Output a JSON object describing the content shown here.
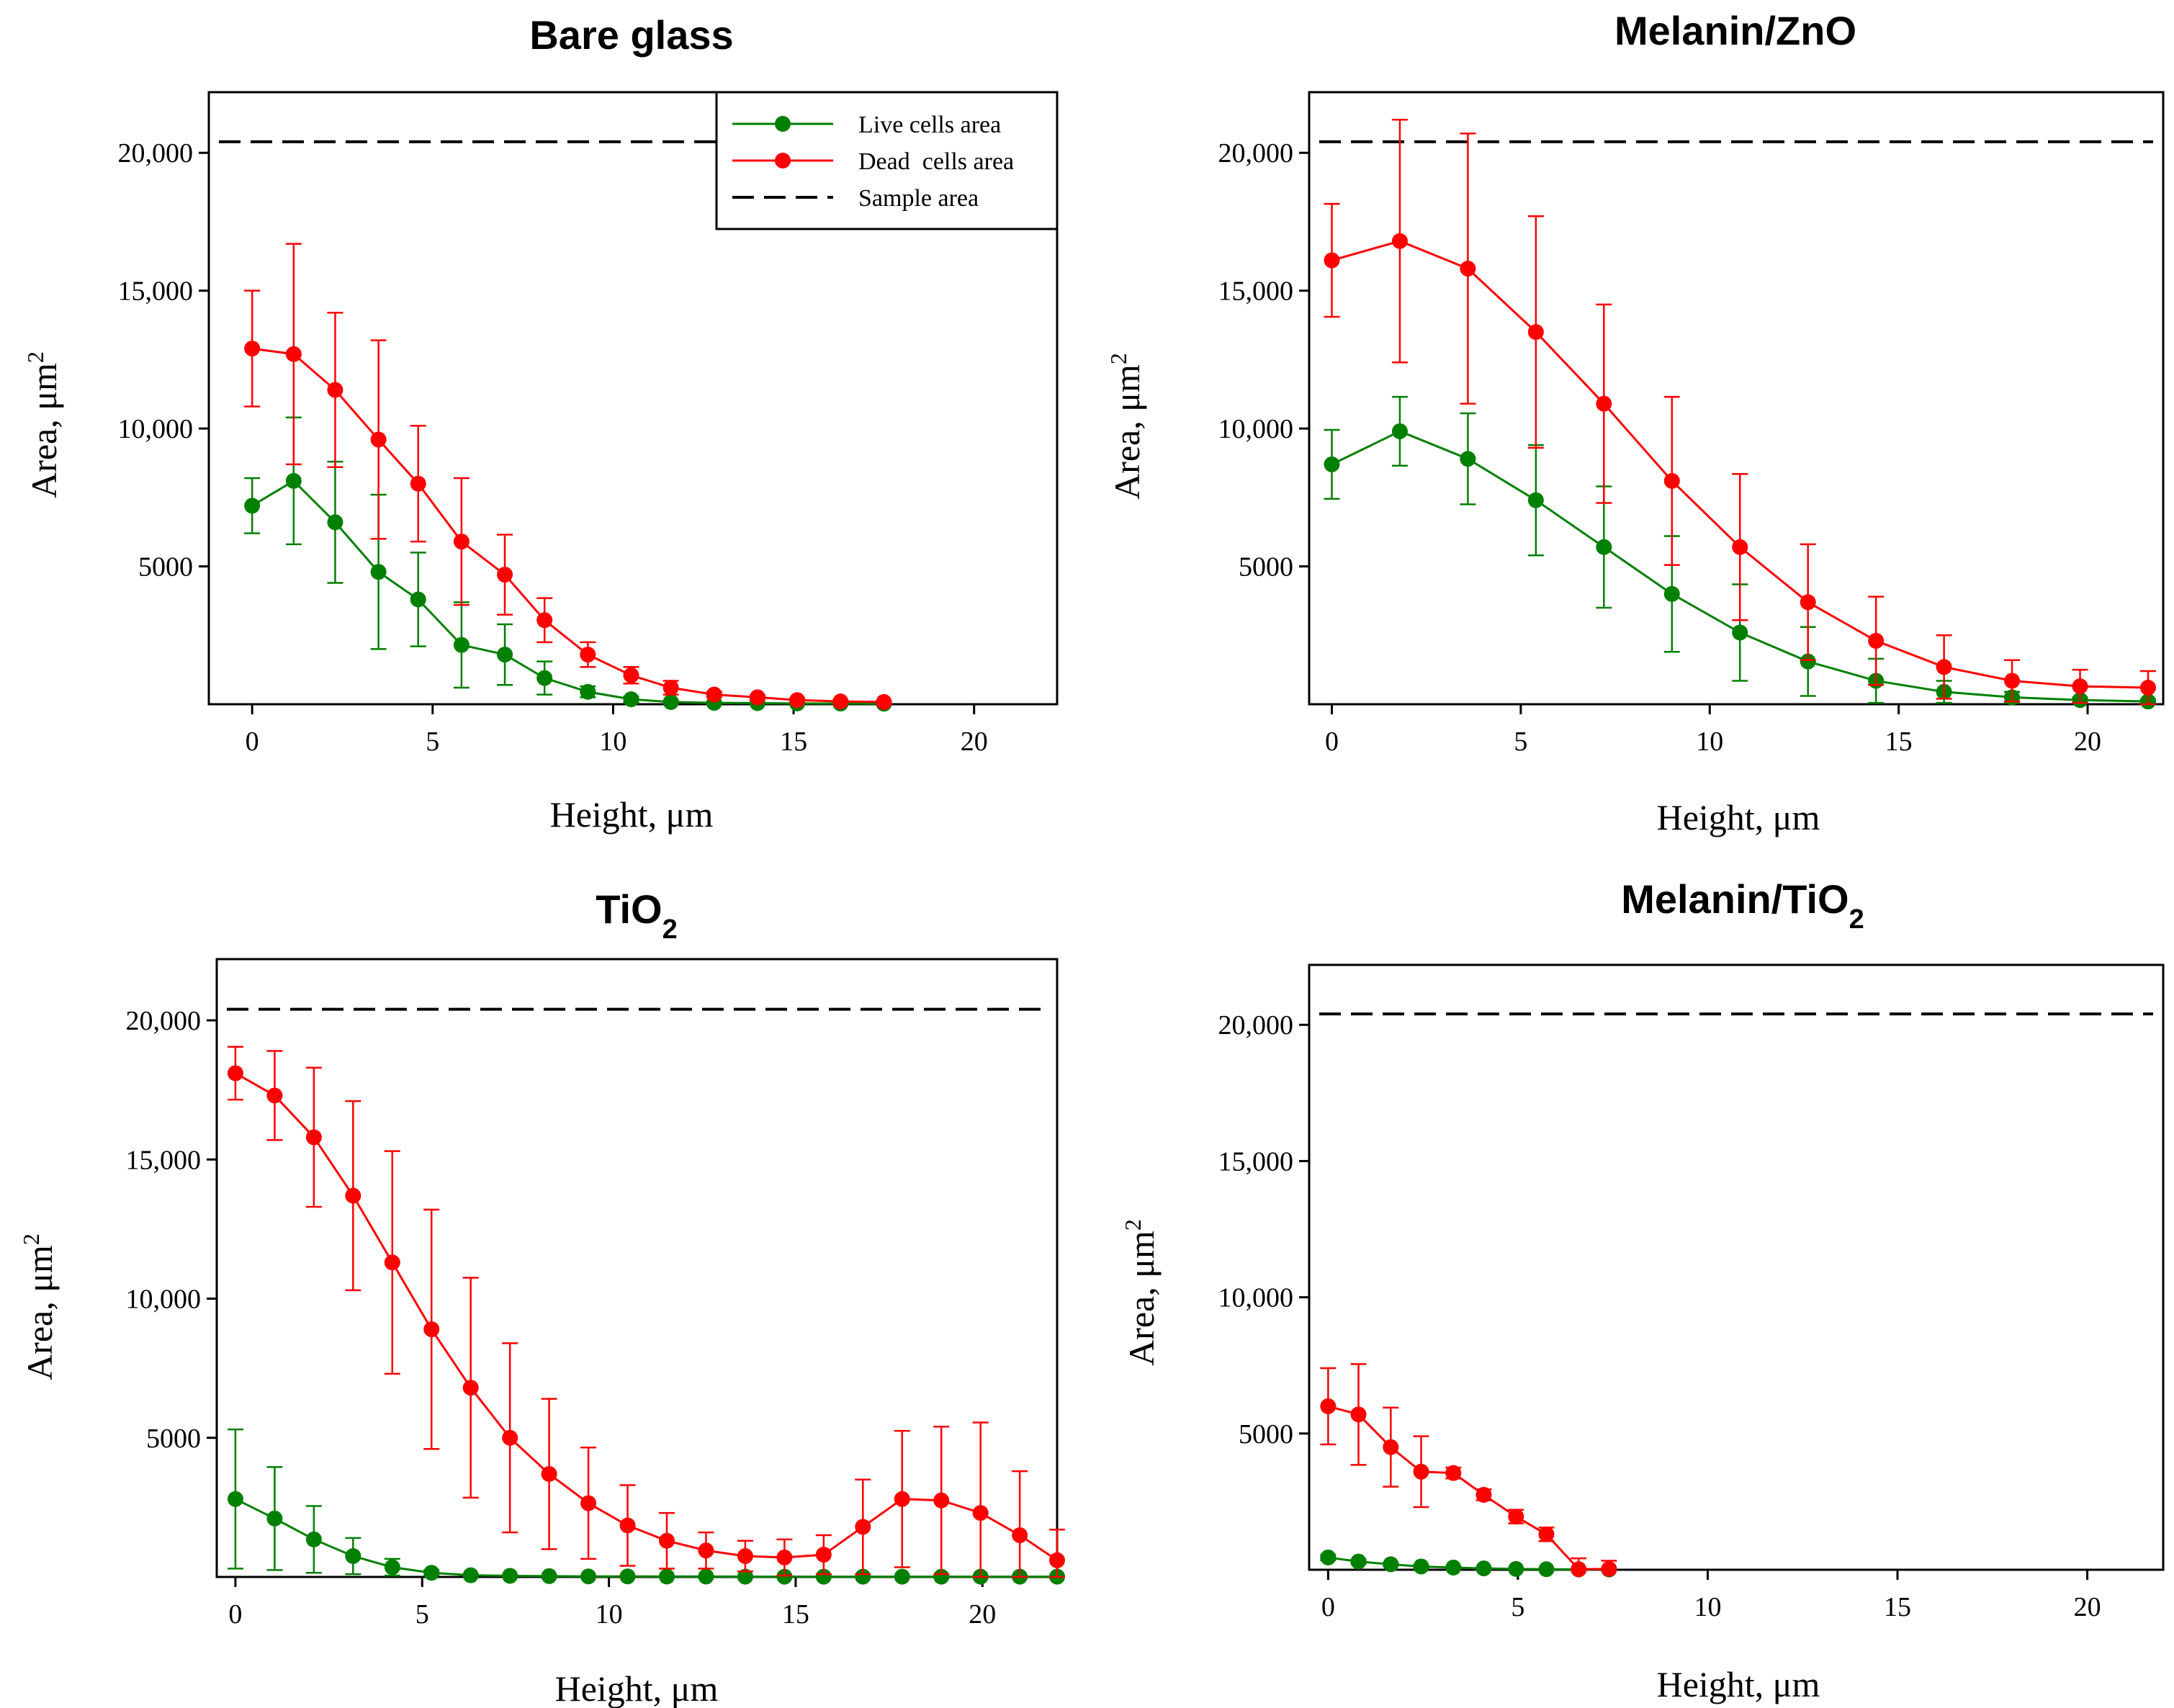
{
  "chart_data": [
    {
      "type": "line",
      "title": "Bare glass",
      "title_sub": "",
      "xlabel": "Height, μm",
      "ylabel": "Area, μm",
      "ylabel_sup": "2",
      "xlim": [
        -1.2,
        22.3
      ],
      "ylim": [
        0,
        22200
      ],
      "xticks": [
        0,
        5,
        10,
        15,
        20
      ],
      "yticks": [
        5000,
        10000,
        15000,
        20000
      ],
      "ytick_labels": [
        "5000",
        "10,000",
        "15,000",
        "20,000"
      ],
      "sample_area": 20400,
      "legend": {
        "position": "top-right",
        "entries": [
          "Live cells area",
          "Dead  cells area",
          "Sample area"
        ]
      },
      "series": [
        {
          "name": "Live cells area",
          "color": "#008000",
          "x": [
            0,
            1.15,
            2.3,
            3.5,
            4.6,
            5.8,
            7.0,
            8.1,
            9.3,
            10.5,
            11.6,
            12.8,
            14.0,
            15.1,
            16.3,
            17.5
          ],
          "y": [
            7200,
            8100,
            6600,
            4800,
            3800,
            2150,
            1800,
            950,
            450,
            180,
            80,
            50,
            40,
            30,
            25,
            20
          ],
          "err": [
            1000,
            2300,
            2200,
            2800,
            1700,
            1550,
            1100,
            600,
            200,
            100,
            50,
            30,
            20,
            15,
            15,
            10
          ]
        },
        {
          "name": "Dead  cells area",
          "color": "#ff0000",
          "x": [
            0,
            1.15,
            2.3,
            3.5,
            4.6,
            5.8,
            7.0,
            8.1,
            9.3,
            10.5,
            11.6,
            12.8,
            14.0,
            15.1,
            16.3,
            17.5
          ],
          "y": [
            12900,
            12700,
            11400,
            9600,
            8000,
            5900,
            4700,
            3050,
            1800,
            1050,
            600,
            350,
            250,
            150,
            100,
            80
          ],
          "err": [
            2100,
            4000,
            2800,
            3600,
            2100,
            2300,
            1450,
            800,
            450,
            300,
            250,
            100,
            80,
            60,
            50,
            40
          ]
        }
      ]
    },
    {
      "type": "line",
      "title": "Melanin/ZnO",
      "title_sub": "",
      "xlabel": "Height, μm",
      "ylabel": "Area, μm",
      "ylabel_sup": "2",
      "xlim": [
        -0.6,
        22.0
      ],
      "ylim": [
        0,
        22200
      ],
      "xticks": [
        0,
        5,
        10,
        15,
        20
      ],
      "yticks": [
        5000,
        10000,
        15000,
        20000
      ],
      "ytick_labels": [
        "5000",
        "10,000",
        "15,000",
        "20,000"
      ],
      "sample_area": 20400,
      "series": [
        {
          "name": "Live cells area",
          "color": "#008000",
          "x": [
            0,
            1.8,
            3.6,
            5.4,
            7.2,
            9.0,
            10.8,
            12.6,
            14.4,
            16.2,
            18.0,
            19.8,
            21.6
          ],
          "y": [
            8700,
            9900,
            8900,
            7400,
            5700,
            4000,
            2600,
            1550,
            850,
            450,
            250,
            150,
            100
          ],
          "err": [
            1250,
            1250,
            1650,
            2000,
            2200,
            2100,
            1750,
            1250,
            800,
            400,
            200,
            100,
            80
          ]
        },
        {
          "name": "Dead  cells area",
          "color": "#ff0000",
          "x": [
            0,
            1.8,
            3.6,
            5.4,
            7.2,
            9.0,
            10.8,
            12.6,
            14.4,
            16.2,
            18.0,
            19.8,
            21.6
          ],
          "y": [
            16100,
            16800,
            15800,
            13500,
            10900,
            8100,
            5700,
            3700,
            2300,
            1350,
            850,
            650,
            600
          ],
          "err": [
            2050,
            4400,
            4900,
            4200,
            3600,
            3050,
            2650,
            2100,
            1600,
            1150,
            750,
            600,
            600
          ]
        }
      ]
    },
    {
      "type": "line",
      "title": "TiO",
      "title_sub": "2",
      "xlabel": "Height, μm",
      "ylabel": "Area, μm",
      "ylabel_sup": "2",
      "xlim": [
        -0.5,
        22.0
      ],
      "ylim": [
        0,
        22200
      ],
      "xticks": [
        0,
        5,
        10,
        15,
        20
      ],
      "yticks": [
        5000,
        10000,
        15000,
        20000
      ],
      "ytick_labels": [
        "5000",
        "10,000",
        "15,000",
        "20,000"
      ],
      "sample_area": 20400,
      "series": [
        {
          "name": "Live cells area",
          "color": "#008000",
          "x": [
            0,
            1.05,
            2.1,
            3.15,
            4.2,
            5.25,
            6.3,
            7.35,
            8.4,
            9.45,
            10.5,
            11.55,
            12.6,
            13.65,
            14.7,
            15.75,
            16.8,
            17.85,
            18.9,
            19.95,
            21.0,
            22.0
          ],
          "y": [
            2800,
            2100,
            1350,
            750,
            350,
            150,
            60,
            40,
            30,
            20,
            20,
            15,
            15,
            10,
            10,
            10,
            10,
            10,
            10,
            10,
            10,
            10
          ],
          "err": [
            2500,
            1850,
            1200,
            650,
            300,
            100,
            40,
            20,
            10,
            10,
            10,
            10,
            10,
            5,
            5,
            5,
            5,
            5,
            5,
            5,
            5,
            5
          ]
        },
        {
          "name": "Dead  cells area",
          "color": "#ff0000",
          "x": [
            0,
            1.05,
            2.1,
            3.15,
            4.2,
            5.25,
            6.3,
            7.35,
            8.4,
            9.45,
            10.5,
            11.55,
            12.6,
            13.65,
            14.7,
            15.75,
            16.8,
            17.85,
            18.9,
            19.95,
            21.0,
            22.0
          ],
          "y": [
            18100,
            17300,
            15800,
            13700,
            11300,
            8900,
            6800,
            5000,
            3700,
            2650,
            1850,
            1300,
            950,
            750,
            700,
            800,
            1800,
            2800,
            2750,
            2300,
            1500,
            600
          ],
          "err": [
            950,
            1600,
            2500,
            3400,
            4000,
            4300,
            3950,
            3400,
            2700,
            2000,
            1450,
            1000,
            650,
            550,
            650,
            700,
            1700,
            2450,
            2650,
            3250,
            2300,
            1100
          ]
        }
      ]
    },
    {
      "type": "line",
      "title": "Melanin/TiO",
      "title_sub": "2",
      "xlabel": "Height, μm",
      "ylabel": "Area, μm",
      "ylabel_sup": "2",
      "xlim": [
        -0.5,
        22.0
      ],
      "ylim": [
        0,
        22200
      ],
      "xticks": [
        0,
        5,
        10,
        15,
        20
      ],
      "yticks": [
        5000,
        10000,
        15000,
        20000
      ],
      "ytick_labels": [
        "5000",
        "10,000",
        "15,000",
        "20,000"
      ],
      "sample_area": 20400,
      "series": [
        {
          "name": "Live cells area",
          "color": "#008000",
          "x": [
            0,
            0.8,
            1.65,
            2.45,
            3.3,
            4.1,
            4.95,
            5.75,
            6.6,
            7.4
          ],
          "y": [
            450,
            300,
            200,
            120,
            80,
            50,
            30,
            20,
            10,
            10
          ],
          "err": [
            100,
            80,
            60,
            40,
            30,
            20,
            15,
            10,
            5,
            5
          ]
        },
        {
          "name": "Dead  cells area",
          "color": "#ff0000",
          "x": [
            0,
            0.8,
            1.65,
            2.45,
            3.3,
            4.1,
            4.95,
            5.75,
            6.6,
            7.4
          ],
          "y": [
            6000,
            5700,
            4500,
            3600,
            3550,
            2750,
            1950,
            1300,
            20,
            30
          ],
          "err": [
            1400,
            1850,
            1450,
            1300,
            200,
            200,
            250,
            250,
            400,
            300
          ]
        }
      ]
    }
  ]
}
